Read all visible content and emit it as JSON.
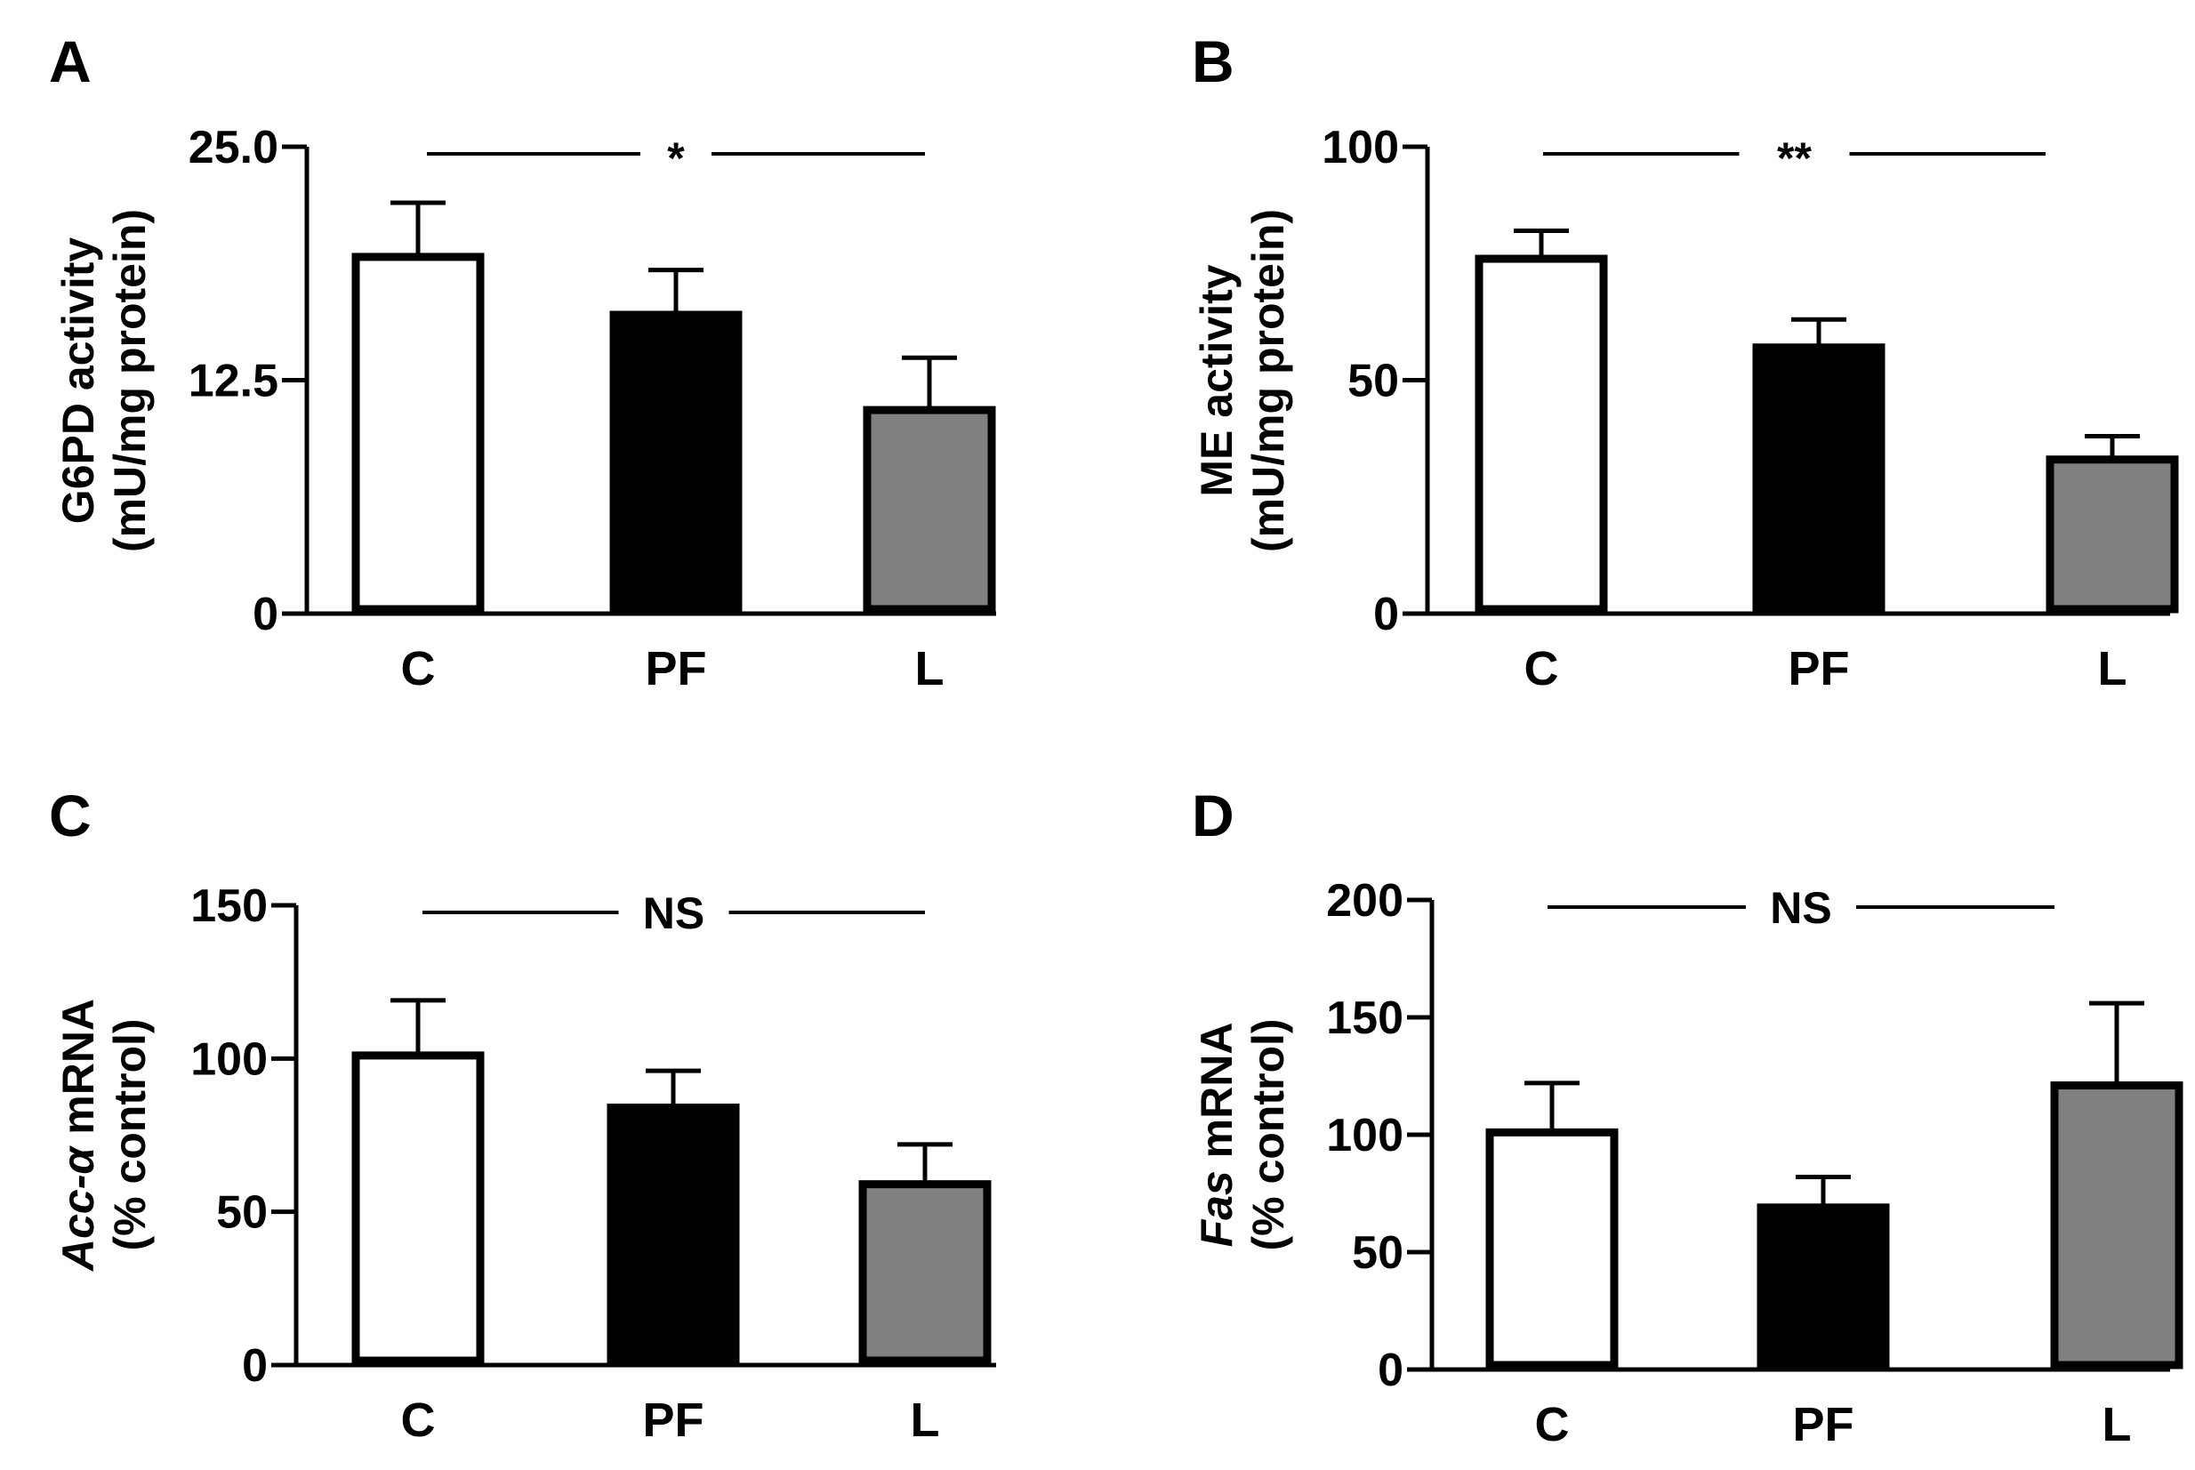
{
  "chart_data": [
    {
      "panel": "A",
      "type": "bar",
      "categories": [
        "C",
        "PF",
        "L"
      ],
      "values": [
        19.1,
        16.0,
        10.9
      ],
      "errors": [
        2.9,
        2.4,
        2.8
      ],
      "colors": [
        "#ffffff",
        "#000000",
        "#808080"
      ],
      "ylim": [
        0,
        25.0
      ],
      "yticks": [
        "0",
        "12.5",
        "25.0"
      ],
      "ylabel_lines": [
        [
          {
            "text": "G6PD activity",
            "italic": false
          }
        ],
        [
          {
            "text": "(mU/mg protein)",
            "italic": false
          }
        ]
      ],
      "significance": "*"
    },
    {
      "panel": "B",
      "type": "bar",
      "categories": [
        "C",
        "PF",
        "L"
      ],
      "values": [
        76,
        57,
        33
      ],
      "errors": [
        6,
        6,
        5
      ],
      "colors": [
        "#ffffff",
        "#000000",
        "#808080"
      ],
      "ylim": [
        0,
        100
      ],
      "yticks": [
        "0",
        "50",
        "100"
      ],
      "ylabel_lines": [
        [
          {
            "text": "ME activity",
            "italic": false
          }
        ],
        [
          {
            "text": "(mU/mg protein)",
            "italic": false
          }
        ]
      ],
      "significance": "**"
    },
    {
      "panel": "C",
      "type": "bar",
      "categories": [
        "C",
        "PF",
        "L"
      ],
      "values": [
        101,
        84,
        59
      ],
      "errors": [
        18,
        12,
        13
      ],
      "colors": [
        "#ffffff",
        "#000000",
        "#808080"
      ],
      "ylim": [
        0,
        150
      ],
      "yticks": [
        "0",
        "50",
        "100",
        "150"
      ],
      "ylabel_lines": [
        [
          {
            "text": "Acc-α",
            "italic": true
          },
          {
            "text": " mRNA",
            "italic": false
          }
        ],
        [
          {
            "text": "(% control)",
            "italic": false
          }
        ]
      ],
      "significance": "NS"
    },
    {
      "panel": "D",
      "type": "bar",
      "categories": [
        "C",
        "PF",
        "L"
      ],
      "values": [
        101,
        69,
        121
      ],
      "errors": [
        21,
        13,
        35
      ],
      "colors": [
        "#ffffff",
        "#000000",
        "#808080"
      ],
      "ylim": [
        0,
        200
      ],
      "yticks": [
        "0",
        "50",
        "100",
        "150",
        "200"
      ],
      "ylabel_lines": [
        [
          {
            "text": "Fas",
            "italic": true
          },
          {
            "text": " mRNA",
            "italic": false
          }
        ],
        [
          {
            "text": "(% control)",
            "italic": false
          }
        ]
      ],
      "significance": "NS"
    }
  ]
}
